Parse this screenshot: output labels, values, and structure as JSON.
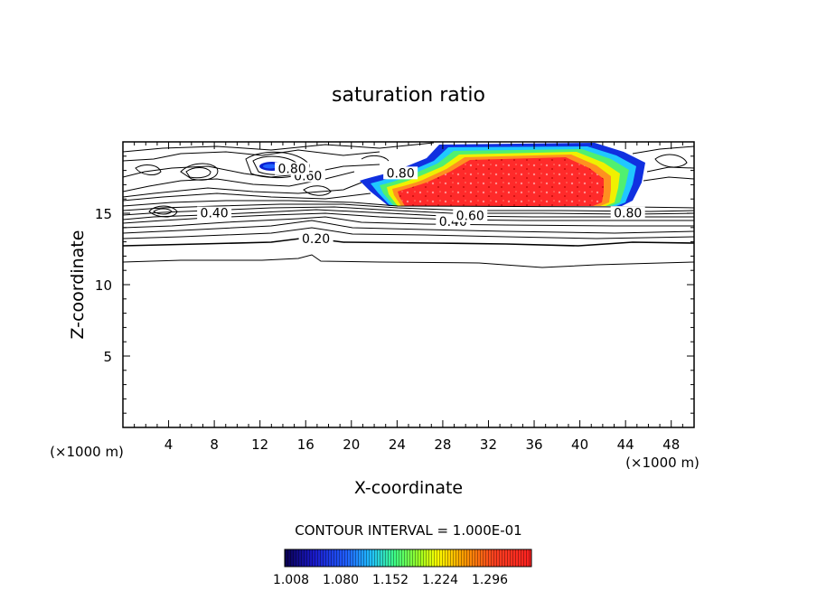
{
  "chart_data": {
    "type": "contour",
    "title": "saturation ratio",
    "xlabel": "X-coordinate",
    "ylabel": "Z-coordinate",
    "x_unit_left": "(×1000 m)",
    "x_unit_right": "(×1000 m)",
    "xlim": [
      0,
      50
    ],
    "ylim": [
      0,
      20
    ],
    "x_ticks": [
      4,
      8,
      12,
      16,
      20,
      24,
      28,
      32,
      36,
      40,
      44,
      48
    ],
    "y_ticks": [
      5,
      10,
      15
    ],
    "contour_interval_text": "CONTOUR INTERVAL = 1.000E-01",
    "contour_labels": [
      {
        "text": "0.20",
        "x": 16.9,
        "z": 13.1
      },
      {
        "text": "0.40",
        "x": 8.0,
        "z": 14.9
      },
      {
        "text": "0.40",
        "x": 28.9,
        "z": 14.3
      },
      {
        "text": "0.60",
        "x": 16.2,
        "z": 17.5
      },
      {
        "text": "0.60",
        "x": 30.4,
        "z": 14.7
      },
      {
        "text": "0.80",
        "x": 14.8,
        "z": 18.0
      },
      {
        "text": "0.80",
        "x": 24.3,
        "z": 17.7
      },
      {
        "text": "0.80",
        "x": 44.2,
        "z": 14.9
      }
    ],
    "filled_region": {
      "z_threshold": 1.0,
      "x_range": [
        22,
        45
      ],
      "z_range": [
        15.4,
        19.8
      ]
    },
    "colorbar": {
      "ticks": [
        "1.008",
        "1.080",
        "1.152",
        "1.224",
        "1.296"
      ],
      "colors": [
        "#0a0050",
        "#1a1acc",
        "#2060ff",
        "#20c0ff",
        "#40ff80",
        "#a0ff20",
        "#ffff00",
        "#ffa000",
        "#ff4020",
        "#ff2020"
      ]
    }
  }
}
